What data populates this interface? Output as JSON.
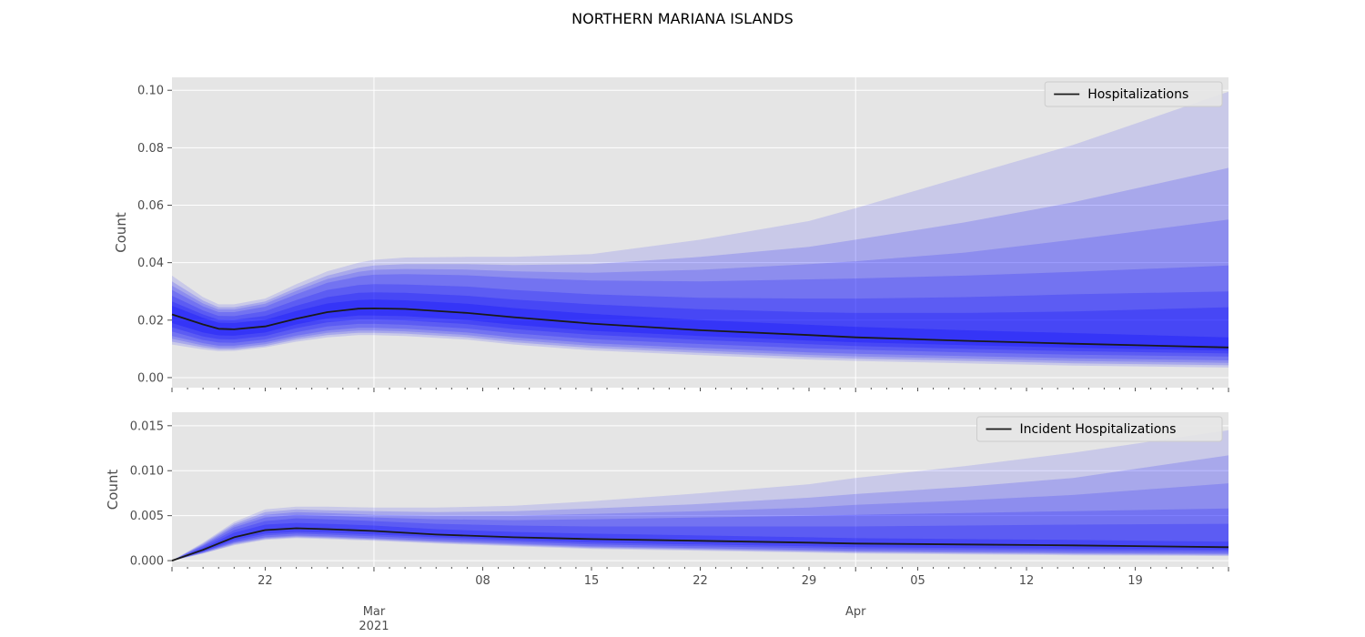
{
  "title": "NORTHERN MARIANA ISLANDS",
  "colors": {
    "band": "#0000ff",
    "median": "#1a1a1a",
    "panel_bg": "#e5e5e5",
    "grid": "#ffffff"
  },
  "xaxis": {
    "range": [
      "2021-02-16",
      "2021-04-25"
    ],
    "day_tick_labels": [
      "22",
      "08",
      "15",
      "22",
      "29",
      "05",
      "12",
      "19"
    ],
    "month_tick_labels": [
      "Mar\n2021",
      "Apr"
    ]
  },
  "chart_data": [
    {
      "type": "area",
      "ylabel": "Count",
      "ylim": [
        -0.0035,
        0.1045
      ],
      "yticks": [
        "0.00",
        "0.02",
        "0.04",
        "0.06",
        "0.08",
        "0.10"
      ],
      "grid": true,
      "legend": {
        "position": "top-right",
        "entries": [
          "Hospitalizations"
        ]
      },
      "series": [
        {
          "name": "Hospitalizations",
          "x": [
            "2021-02-16",
            "2021-02-18",
            "2021-02-19",
            "2021-02-20",
            "2021-02-22",
            "2021-02-24",
            "2021-02-26",
            "2021-02-28",
            "2021-03-01",
            "2021-03-03",
            "2021-03-07",
            "2021-03-10",
            "2021-03-15",
            "2021-03-22",
            "2021-03-29",
            "2021-04-01",
            "2021-04-08",
            "2021-04-15",
            "2021-04-25"
          ],
          "median": [
            0.022,
            0.0185,
            0.017,
            0.0168,
            0.0178,
            0.0205,
            0.0228,
            0.024,
            0.0241,
            0.0239,
            0.0225,
            0.021,
            0.0188,
            0.0165,
            0.0148,
            0.014,
            0.0128,
            0.0118,
            0.0105
          ],
          "bands": [
            {
              "lower": [
                0.0115,
                0.0098,
                0.0092,
                0.0093,
                0.0105,
                0.0125,
                0.014,
                0.0148,
                0.0148,
                0.0145,
                0.0132,
                0.0115,
                0.0095,
                0.0078,
                0.0063,
                0.0058,
                0.005,
                0.0042,
                0.0035
              ],
              "upper": [
                0.0355,
                0.028,
                0.0255,
                0.0255,
                0.0275,
                0.0325,
                0.037,
                0.04,
                0.041,
                0.0418,
                0.042,
                0.042,
                0.043,
                0.048,
                0.0545,
                0.059,
                0.07,
                0.081,
                0.0995
              ]
            },
            {
              "lower": [
                0.0125,
                0.0105,
                0.0098,
                0.0098,
                0.011,
                0.0132,
                0.0148,
                0.0156,
                0.0156,
                0.0153,
                0.014,
                0.0123,
                0.0103,
                0.0086,
                0.0071,
                0.0066,
                0.0058,
                0.005,
                0.0043
              ],
              "upper": [
                0.0335,
                0.0268,
                0.0245,
                0.0245,
                0.0265,
                0.0312,
                0.0355,
                0.0382,
                0.039,
                0.0395,
                0.0395,
                0.0392,
                0.0395,
                0.042,
                0.0455,
                0.048,
                0.054,
                0.061,
                0.073
              ]
            },
            {
              "lower": [
                0.0135,
                0.0112,
                0.0104,
                0.0104,
                0.0116,
                0.0139,
                0.0156,
                0.0164,
                0.0164,
                0.0161,
                0.0148,
                0.0131,
                0.0111,
                0.0094,
                0.0079,
                0.0074,
                0.0066,
                0.0058,
                0.0051
              ],
              "upper": [
                0.032,
                0.0258,
                0.0237,
                0.0237,
                0.0257,
                0.0302,
                0.0343,
                0.0368,
                0.0375,
                0.0378,
                0.0376,
                0.037,
                0.0365,
                0.0375,
                0.0395,
                0.0405,
                0.0435,
                0.048,
                0.055
              ]
            },
            {
              "lower": [
                0.0145,
                0.012,
                0.0111,
                0.0111,
                0.0123,
                0.0146,
                0.0164,
                0.0173,
                0.0173,
                0.017,
                0.0157,
                0.014,
                0.012,
                0.0103,
                0.0088,
                0.0083,
                0.0075,
                0.0067,
                0.006
              ],
              "upper": [
                0.0305,
                0.0248,
                0.0228,
                0.0228,
                0.0247,
                0.029,
                0.033,
                0.0352,
                0.0358,
                0.036,
                0.0356,
                0.0348,
                0.0338,
                0.0335,
                0.0342,
                0.0345,
                0.0355,
                0.0368,
                0.039
              ]
            },
            {
              "lower": [
                0.016,
                0.0131,
                0.0122,
                0.0121,
                0.0133,
                0.0158,
                0.0178,
                0.0187,
                0.0187,
                0.0184,
                0.0171,
                0.0154,
                0.0134,
                0.0117,
                0.0102,
                0.0097,
                0.0088,
                0.008,
                0.0073
              ],
              "upper": [
                0.0285,
                0.0234,
                0.0215,
                0.0214,
                0.0231,
                0.027,
                0.0305,
                0.0322,
                0.0325,
                0.0324,
                0.0317,
                0.0305,
                0.029,
                0.0278,
                0.0275,
                0.0275,
                0.028,
                0.029,
                0.03
              ]
            },
            {
              "lower": [
                0.0175,
                0.0143,
                0.0134,
                0.0133,
                0.0145,
                0.0172,
                0.0192,
                0.0202,
                0.0202,
                0.0199,
                0.0186,
                0.0169,
                0.0149,
                0.0131,
                0.0116,
                0.011,
                0.01,
                0.0092,
                0.0084
              ],
              "upper": [
                0.0265,
                0.022,
                0.0202,
                0.0201,
                0.0215,
                0.025,
                0.028,
                0.0295,
                0.0297,
                0.0295,
                0.0285,
                0.0272,
                0.0255,
                0.0238,
                0.0228,
                0.0225,
                0.0225,
                0.023,
                0.0245
              ]
            },
            {
              "lower": [
                0.019,
                0.0157,
                0.0147,
                0.0146,
                0.0157,
                0.0185,
                0.0206,
                0.0216,
                0.0216,
                0.0214,
                0.02,
                0.0184,
                0.0163,
                0.0145,
                0.0129,
                0.0123,
                0.0113,
                0.0104,
                0.0094
              ],
              "upper": [
                0.025,
                0.0208,
                0.0191,
                0.019,
                0.0201,
                0.0232,
                0.0258,
                0.027,
                0.0272,
                0.0269,
                0.0257,
                0.0242,
                0.0222,
                0.02,
                0.0184,
                0.0177,
                0.0165,
                0.0155,
                0.014
              ]
            }
          ]
        }
      ]
    },
    {
      "type": "area",
      "ylabel": "Count",
      "ylim": [
        -0.0007,
        0.0165
      ],
      "yticks": [
        "0.000",
        "0.005",
        "0.010",
        "0.015"
      ],
      "grid": true,
      "legend": {
        "position": "top-right",
        "entries": [
          "Incident Hospitalizations"
        ]
      },
      "series": [
        {
          "name": "Incident Hospitalizations",
          "x": [
            "2021-02-16",
            "2021-02-18",
            "2021-02-20",
            "2021-02-22",
            "2021-02-24",
            "2021-02-26",
            "2021-03-01",
            "2021-03-05",
            "2021-03-10",
            "2021-03-15",
            "2021-03-22",
            "2021-03-29",
            "2021-04-01",
            "2021-04-08",
            "2021-04-15",
            "2021-04-25"
          ],
          "median": [
            0.0,
            0.0012,
            0.0026,
            0.0034,
            0.0036,
            0.0035,
            0.0033,
            0.0029,
            0.0026,
            0.0024,
            0.0022,
            0.002,
            0.0019,
            0.0018,
            0.0017,
            0.0015
          ],
          "bands": [
            {
              "lower": [
                0.0,
                0.0008,
                0.0017,
                0.0023,
                0.0025,
                0.0024,
                0.0022,
                0.0019,
                0.0016,
                0.0013,
                0.0011,
                0.0009,
                0.0008,
                0.0007,
                0.0006,
                0.0005
              ],
              "upper": [
                0.0,
                0.002,
                0.0043,
                0.0057,
                0.006,
                0.006,
                0.0059,
                0.0059,
                0.0061,
                0.0066,
                0.0075,
                0.0085,
                0.0092,
                0.0105,
                0.012,
                0.0145
              ]
            },
            {
              "lower": [
                0.0,
                0.0008,
                0.0018,
                0.0024,
                0.0026,
                0.0025,
                0.0023,
                0.002,
                0.0017,
                0.0014,
                0.0012,
                0.001,
                0.0009,
                0.0008,
                0.0007,
                0.0006
              ],
              "upper": [
                0.0,
                0.0019,
                0.0041,
                0.0054,
                0.0057,
                0.0056,
                0.0055,
                0.0054,
                0.0055,
                0.0058,
                0.0063,
                0.007,
                0.0074,
                0.0082,
                0.0092,
                0.0117
              ]
            },
            {
              "lower": [
                0.0,
                0.0009,
                0.0019,
                0.0025,
                0.0027,
                0.0026,
                0.0024,
                0.0021,
                0.0018,
                0.0015,
                0.0013,
                0.0011,
                0.001,
                0.0009,
                0.0008,
                0.0007
              ],
              "upper": [
                0.0,
                0.0018,
                0.0039,
                0.0051,
                0.0054,
                0.0053,
                0.0051,
                0.005,
                0.005,
                0.0052,
                0.0055,
                0.0059,
                0.0062,
                0.0067,
                0.0073,
                0.0086
              ]
            },
            {
              "lower": [
                0.0,
                0.0009,
                0.002,
                0.0026,
                0.0028,
                0.0027,
                0.0025,
                0.0022,
                0.0019,
                0.0016,
                0.0014,
                0.0012,
                0.0011,
                0.001,
                0.0009,
                0.0008
              ],
              "upper": [
                0.0,
                0.0017,
                0.0037,
                0.0048,
                0.0051,
                0.005,
                0.0048,
                0.0046,
                0.0045,
                0.0046,
                0.0048,
                0.005,
                0.0051,
                0.0053,
                0.0055,
                0.0058
              ]
            },
            {
              "lower": [
                0.0,
                0.001,
                0.0021,
                0.0028,
                0.003,
                0.0029,
                0.0027,
                0.0024,
                0.0021,
                0.0018,
                0.0016,
                0.0014,
                0.0013,
                0.0012,
                0.0011,
                0.001
              ],
              "upper": [
                0.0,
                0.0016,
                0.0034,
                0.0044,
                0.0047,
                0.0046,
                0.0044,
                0.0041,
                0.0039,
                0.0038,
                0.0038,
                0.0038,
                0.0038,
                0.0039,
                0.004,
                0.0041
              ]
            },
            {
              "lower": [
                0.0,
                0.001,
                0.0023,
                0.003,
                0.0032,
                0.0031,
                0.0029,
                0.0026,
                0.0023,
                0.002,
                0.0018,
                0.0016,
                0.0015,
                0.0014,
                0.0013,
                0.0012
              ],
              "upper": [
                0.0,
                0.0014,
                0.0031,
                0.004,
                0.0042,
                0.0041,
                0.0039,
                0.0035,
                0.0032,
                0.003,
                0.0028,
                0.0026,
                0.0025,
                0.0024,
                0.0023,
                0.0021
              ]
            }
          ]
        }
      ]
    }
  ]
}
